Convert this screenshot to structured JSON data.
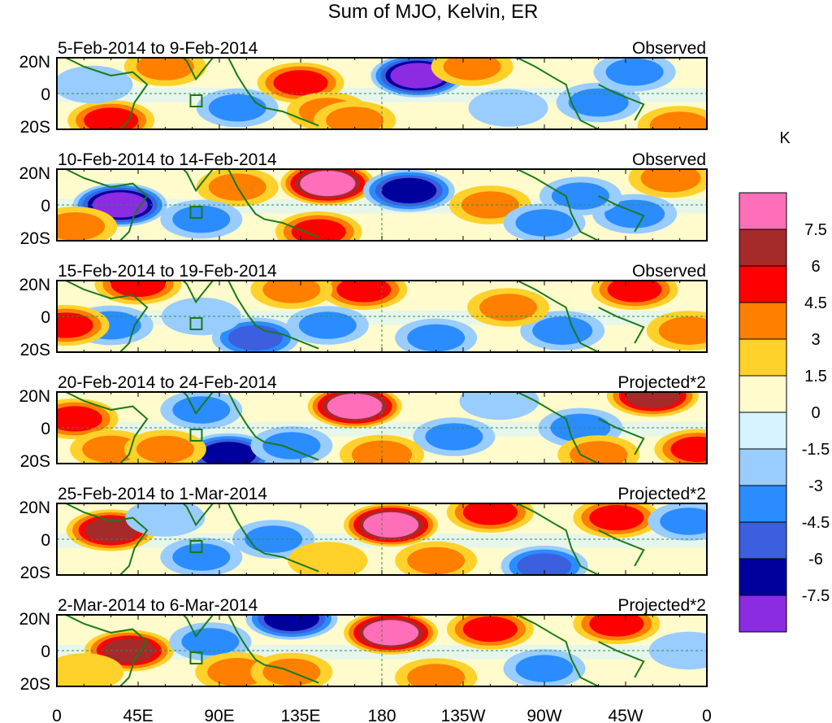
{
  "chart_data": {
    "type": "heatmap",
    "title": "Sum of MJO, Kelvin, ER",
    "units": "K",
    "lat_range": [
      -20,
      20
    ],
    "lon_range": [
      0,
      360
    ],
    "lat_ticks": [
      "20N",
      "0",
      "20S"
    ],
    "lon_ticks": [
      "0",
      "45E",
      "90E",
      "135E",
      "180",
      "135W",
      "90W",
      "45W",
      "0"
    ],
    "colorbar": {
      "labels": [
        "7.5",
        "6",
        "4.5",
        "3",
        "1.5",
        "0",
        "-1.5",
        "-3",
        "-4.5",
        "-6",
        "-7.5"
      ],
      "colors": [
        "#ff6eb9",
        "#a52a2a",
        "#ff0000",
        "#ff7f00",
        "#ffd12a",
        "#fffbcc",
        "#d6f3ff",
        "#99ccff",
        "#2b8cff",
        "#3c5fe0",
        "#00009c",
        "#8b2be2"
      ]
    },
    "panels": [
      {
        "date_range": "5-Feb-2014 to 9-Feb-2014",
        "status": "Observed",
        "blobs": [
          {
            "lon": 200,
            "lat": 10,
            "v": -8
          },
          {
            "lon": 135,
            "lat": 6,
            "v": 5
          },
          {
            "lon": 30,
            "lat": -15,
            "v": 5
          },
          {
            "lon": 60,
            "lat": 15,
            "v": 3
          },
          {
            "lon": 100,
            "lat": -8,
            "v": -3
          },
          {
            "lon": 150,
            "lat": -10,
            "v": 3
          },
          {
            "lon": 230,
            "lat": 15,
            "v": 3
          },
          {
            "lon": 300,
            "lat": -5,
            "v": -4
          },
          {
            "lon": 320,
            "lat": 12,
            "v": -3
          },
          {
            "lon": 345,
            "lat": -18,
            "v": 4
          },
          {
            "lon": 250,
            "lat": -8,
            "v": -2
          },
          {
            "lon": 20,
            "lat": 5,
            "v": -2
          },
          {
            "lon": 165,
            "lat": -15,
            "v": 3
          }
        ]
      },
      {
        "date_range": "10-Feb-2014 to 14-Feb-2014",
        "status": "Observed",
        "blobs": [
          {
            "lon": 35,
            "lat": 0,
            "v": -8
          },
          {
            "lon": 150,
            "lat": 12,
            "v": 8
          },
          {
            "lon": 195,
            "lat": 8,
            "v": -7
          },
          {
            "lon": 145,
            "lat": -15,
            "v": 5
          },
          {
            "lon": 10,
            "lat": -12,
            "v": 4
          },
          {
            "lon": 320,
            "lat": -5,
            "v": -4
          },
          {
            "lon": 290,
            "lat": 5,
            "v": -3
          },
          {
            "lon": 340,
            "lat": 15,
            "v": 4
          },
          {
            "lon": 100,
            "lat": 10,
            "v": 3
          },
          {
            "lon": 240,
            "lat": 0,
            "v": 3
          },
          {
            "lon": 270,
            "lat": -10,
            "v": -3
          },
          {
            "lon": 80,
            "lat": -8,
            "v": -3
          }
        ]
      },
      {
        "date_range": "15-Feb-2014 to 19-Feb-2014",
        "status": "Observed",
        "blobs": [
          {
            "lon": 170,
            "lat": 15,
            "v": 5
          },
          {
            "lon": 110,
            "lat": -12,
            "v": -5
          },
          {
            "lon": 30,
            "lat": -5,
            "v": -4
          },
          {
            "lon": 5,
            "lat": -5,
            "v": 5
          },
          {
            "lon": 45,
            "lat": 18,
            "v": 5
          },
          {
            "lon": 130,
            "lat": 15,
            "v": 3
          },
          {
            "lon": 320,
            "lat": 15,
            "v": 5
          },
          {
            "lon": 280,
            "lat": -8,
            "v": -4
          },
          {
            "lon": 210,
            "lat": -12,
            "v": -3
          },
          {
            "lon": 250,
            "lat": 5,
            "v": 3
          },
          {
            "lon": 350,
            "lat": -8,
            "v": 4
          },
          {
            "lon": 80,
            "lat": 0,
            "v": -2
          },
          {
            "lon": 150,
            "lat": -5,
            "v": -3
          }
        ]
      },
      {
        "date_range": "20-Feb-2014 to 24-Feb-2014",
        "status": "Projected*2",
        "blobs": [
          {
            "lon": 165,
            "lat": 12,
            "v": 8
          },
          {
            "lon": 95,
            "lat": -15,
            "v": -7
          },
          {
            "lon": 330,
            "lat": 18,
            "v": 7
          },
          {
            "lon": 10,
            "lat": 5,
            "v": 5
          },
          {
            "lon": 30,
            "lat": -12,
            "v": 3
          },
          {
            "lon": 60,
            "lat": -12,
            "v": 3
          },
          {
            "lon": 130,
            "lat": -10,
            "v": -3
          },
          {
            "lon": 220,
            "lat": -5,
            "v": -3
          },
          {
            "lon": 290,
            "lat": 0,
            "v": -4
          },
          {
            "lon": 300,
            "lat": -15,
            "v": 3
          },
          {
            "lon": 355,
            "lat": -12,
            "v": 5
          },
          {
            "lon": 80,
            "lat": 10,
            "v": -3
          },
          {
            "lon": 180,
            "lat": -15,
            "v": 4
          },
          {
            "lon": 245,
            "lat": 15,
            "v": -2
          }
        ]
      },
      {
        "date_range": "25-Feb-2014 to 1-Mar-2014",
        "status": "Projected*2",
        "blobs": [
          {
            "lon": 30,
            "lat": 5,
            "v": 6
          },
          {
            "lon": 185,
            "lat": 8,
            "v": 8
          },
          {
            "lon": 240,
            "lat": 15,
            "v": 5
          },
          {
            "lon": 310,
            "lat": 12,
            "v": 5
          },
          {
            "lon": 80,
            "lat": -10,
            "v": -3
          },
          {
            "lon": 120,
            "lat": 0,
            "v": -3
          },
          {
            "lon": 210,
            "lat": -12,
            "v": 3
          },
          {
            "lon": 270,
            "lat": -15,
            "v": -5
          },
          {
            "lon": 350,
            "lat": 10,
            "v": -3
          },
          {
            "lon": 60,
            "lat": 12,
            "v": -2
          },
          {
            "lon": 150,
            "lat": -12,
            "v": 2
          }
        ]
      },
      {
        "date_range": "2-Mar-2014 to 6-Mar-2014",
        "status": "Projected*2",
        "blobs": [
          {
            "lon": 40,
            "lat": 0,
            "v": 6
          },
          {
            "lon": 185,
            "lat": 10,
            "v": 8
          },
          {
            "lon": 130,
            "lat": 18,
            "v": -7
          },
          {
            "lon": 240,
            "lat": 12,
            "v": 5
          },
          {
            "lon": 310,
            "lat": 15,
            "v": 5
          },
          {
            "lon": 85,
            "lat": 5,
            "v": -3
          },
          {
            "lon": 100,
            "lat": -12,
            "v": 4
          },
          {
            "lon": 130,
            "lat": -12,
            "v": 3
          },
          {
            "lon": 210,
            "lat": -15,
            "v": 3
          },
          {
            "lon": 270,
            "lat": -10,
            "v": -3
          },
          {
            "lon": 350,
            "lat": 0,
            "v": -2
          },
          {
            "lon": 15,
            "lat": -12,
            "v": 2
          }
        ]
      }
    ]
  }
}
